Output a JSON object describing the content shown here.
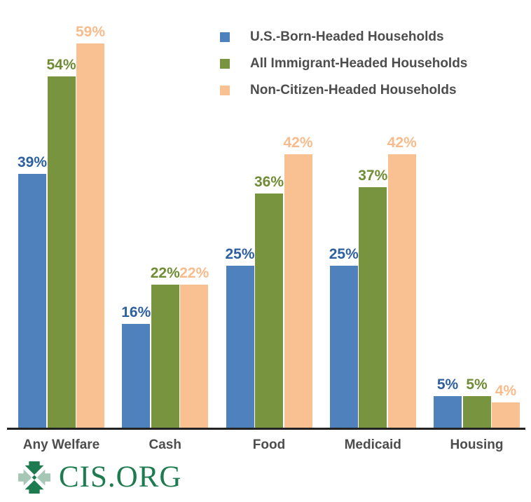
{
  "chart_data": {
    "type": "bar",
    "categories": [
      "Any Welfare",
      "Cash",
      "Food",
      "Medicaid",
      "Housing"
    ],
    "series": [
      {
        "name": "U.S.-Born-Headed Households",
        "color": "#4F81BD",
        "label_color": "#2E5F9E",
        "values": [
          39,
          16,
          25,
          25,
          5
        ]
      },
      {
        "name": "All Immigrant-Headed Households",
        "color": "#78943E",
        "label_color": "#6F8C34",
        "values": [
          54,
          22,
          36,
          37,
          5
        ]
      },
      {
        "name": "Non-Citizen-Headed Households",
        "color": "#F9C092",
        "label_color": "#F8BC8C",
        "values": [
          59,
          22,
          42,
          42,
          4
        ]
      }
    ],
    "value_suffix": "%",
    "ylim": [
      0,
      60
    ],
    "grid": false,
    "legend_position": "top-right",
    "data_labels": "above-bars"
  },
  "footer": {
    "logo_text": "CIS.ORG",
    "logo_color_dark": "#1E7B4F",
    "logo_color_light": "#A6C7B5"
  }
}
